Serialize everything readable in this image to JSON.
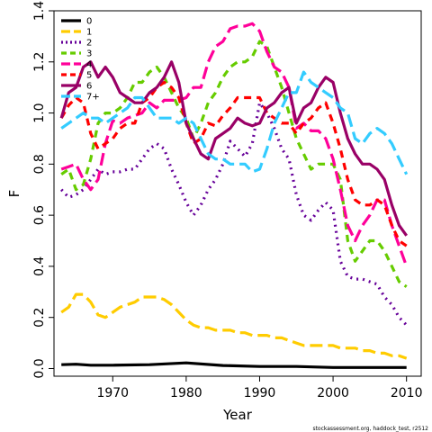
{
  "chart_data": {
    "type": "line",
    "xlabel": "Year",
    "ylabel": "F",
    "xlim": [
      1962,
      2012
    ],
    "ylim": [
      -0.03,
      1.4
    ],
    "xticks": [
      1970,
      1980,
      1990,
      2000,
      2010
    ],
    "yticks": [
      0.0,
      0.2,
      0.4,
      0.6,
      0.8,
      1.0,
      1.2,
      1.4
    ],
    "legend_position": "top-left",
    "grid": false,
    "footnote": "stockassessment.org, haddock_test, r2512",
    "series": [
      {
        "name": "0",
        "color": "#000000",
        "dash": "solid",
        "x": [
          1963,
          1965,
          1967,
          1970,
          1975,
          1980,
          1985,
          1990,
          1995,
          2000,
          2005,
          2010
        ],
        "y": [
          0.015,
          0.017,
          0.013,
          0.013,
          0.015,
          0.022,
          0.012,
          0.008,
          0.008,
          0.004,
          0.004,
          0.004
        ]
      },
      {
        "name": "1",
        "color": "#FFCC00",
        "dash": "long",
        "x": [
          1963,
          1964,
          1965,
          1966,
          1967,
          1968,
          1969,
          1970,
          1971,
          1972,
          1973,
          1974,
          1975,
          1976,
          1977,
          1978,
          1979,
          1980,
          1981,
          1982,
          1983,
          1984,
          1985,
          1986,
          1987,
          1988,
          1989,
          1990,
          1991,
          1992,
          1993,
          1994,
          1995,
          1996,
          1997,
          1998,
          1999,
          2000,
          2001,
          2002,
          2003,
          2004,
          2005,
          2006,
          2007,
          2008,
          2009,
          2010
        ],
        "y": [
          0.22,
          0.24,
          0.29,
          0.29,
          0.26,
          0.21,
          0.2,
          0.22,
          0.24,
          0.25,
          0.26,
          0.28,
          0.28,
          0.28,
          0.27,
          0.25,
          0.22,
          0.19,
          0.17,
          0.16,
          0.16,
          0.15,
          0.15,
          0.15,
          0.14,
          0.14,
          0.13,
          0.13,
          0.13,
          0.12,
          0.12,
          0.11,
          0.1,
          0.09,
          0.09,
          0.09,
          0.09,
          0.09,
          0.08,
          0.08,
          0.08,
          0.07,
          0.07,
          0.06,
          0.06,
          0.05,
          0.05,
          0.04
        ]
      },
      {
        "name": "2",
        "color": "#660099",
        "dash": "dotted",
        "x": [
          1963,
          1964,
          1965,
          1966,
          1967,
          1968,
          1969,
          1970,
          1971,
          1972,
          1973,
          1974,
          1975,
          1976,
          1977,
          1978,
          1979,
          1980,
          1981,
          1982,
          1983,
          1984,
          1985,
          1986,
          1987,
          1988,
          1989,
          1990,
          1991,
          1992,
          1993,
          1994,
          1995,
          1996,
          1997,
          1998,
          1999,
          2000,
          2001,
          2002,
          2003,
          2004,
          2005,
          2006,
          2007,
          2008,
          2009,
          2010
        ],
        "y": [
          0.7,
          0.67,
          0.68,
          0.7,
          0.74,
          0.78,
          0.76,
          0.77,
          0.77,
          0.78,
          0.78,
          0.82,
          0.86,
          0.88,
          0.86,
          0.78,
          0.72,
          0.65,
          0.6,
          0.64,
          0.7,
          0.74,
          0.8,
          0.89,
          0.86,
          0.83,
          0.88,
          1.04,
          1.0,
          0.94,
          0.86,
          0.82,
          0.68,
          0.6,
          0.58,
          0.62,
          0.65,
          0.62,
          0.42,
          0.36,
          0.35,
          0.35,
          0.34,
          0.33,
          0.28,
          0.25,
          0.2,
          0.17
        ]
      },
      {
        "name": "3",
        "color": "#66CC00",
        "dash": "dashed",
        "x": [
          1963,
          1964,
          1965,
          1966,
          1967,
          1968,
          1969,
          1970,
          1971,
          1972,
          1973,
          1974,
          1975,
          1976,
          1977,
          1978,
          1979,
          1980,
          1981,
          1982,
          1983,
          1984,
          1985,
          1986,
          1987,
          1988,
          1989,
          1990,
          1991,
          1992,
          1993,
          1994,
          1995,
          1996,
          1997,
          1998,
          1999,
          2000,
          2001,
          2002,
          2003,
          2004,
          2005,
          2006,
          2007,
          2008,
          2009,
          2010
        ],
        "y": [
          0.76,
          0.78,
          0.7,
          0.72,
          0.82,
          0.96,
          1.0,
          1.0,
          1.02,
          1.06,
          1.12,
          1.12,
          1.16,
          1.18,
          1.14,
          1.08,
          1.02,
          0.98,
          0.9,
          0.96,
          1.04,
          1.08,
          1.14,
          1.18,
          1.2,
          1.2,
          1.22,
          1.28,
          1.26,
          1.18,
          1.1,
          1.0,
          0.9,
          0.84,
          0.78,
          0.8,
          0.8,
          0.8,
          0.74,
          0.5,
          0.42,
          0.46,
          0.5,
          0.5,
          0.46,
          0.4,
          0.34,
          0.32
        ]
      },
      {
        "name": "4",
        "color": "#FF0099",
        "dash": "long",
        "x": [
          1963,
          1964,
          1965,
          1966,
          1967,
          1968,
          1969,
          1970,
          1971,
          1972,
          1973,
          1974,
          1975,
          1976,
          1977,
          1978,
          1979,
          1980,
          1981,
          1982,
          1983,
          1984,
          1985,
          1986,
          1987,
          1988,
          1989,
          1990,
          1991,
          1992,
          1993,
          1994,
          1995,
          1996,
          1997,
          1998,
          1999,
          2000,
          2001,
          2002,
          2003,
          2004,
          2005,
          2006,
          2007,
          2008,
          2009,
          2010
        ],
        "y": [
          0.78,
          0.79,
          0.8,
          0.74,
          0.7,
          0.74,
          0.88,
          0.97,
          0.96,
          0.98,
          0.99,
          1.0,
          1.04,
          1.02,
          1.05,
          1.05,
          1.05,
          1.06,
          1.1,
          1.1,
          1.2,
          1.26,
          1.28,
          1.33,
          1.34,
          1.34,
          1.35,
          1.32,
          1.24,
          1.18,
          1.16,
          1.1,
          0.94,
          0.96,
          0.93,
          0.93,
          0.9,
          0.82,
          0.7,
          0.56,
          0.5,
          0.56,
          0.6,
          0.66,
          0.66,
          0.56,
          0.48,
          0.4
        ]
      },
      {
        "name": "5",
        "color": "#FF0000",
        "dash": "dashed",
        "x": [
          1963,
          1964,
          1965,
          1966,
          1967,
          1968,
          1969,
          1970,
          1971,
          1972,
          1973,
          1974,
          1975,
          1976,
          1977,
          1978,
          1979,
          1980,
          1981,
          1982,
          1983,
          1984,
          1985,
          1986,
          1987,
          1988,
          1989,
          1990,
          1991,
          1992,
          1993,
          1994,
          1995,
          1996,
          1997,
          1998,
          1999,
          2000,
          2001,
          2002,
          2003,
          2004,
          2005,
          2006,
          2007,
          2008,
          2009,
          2010
        ],
        "y": [
          0.98,
          1.03,
          1.06,
          1.04,
          0.92,
          0.86,
          0.88,
          0.9,
          0.94,
          0.96,
          0.96,
          1.04,
          1.06,
          1.1,
          1.12,
          1.1,
          1.06,
          0.96,
          0.88,
          0.9,
          0.96,
          0.95,
          0.99,
          1.02,
          1.06,
          1.06,
          1.06,
          1.06,
          1.0,
          0.98,
          0.96,
          0.96,
          0.92,
          0.96,
          0.98,
          1.02,
          1.04,
          0.96,
          0.86,
          0.74,
          0.66,
          0.64,
          0.64,
          0.66,
          0.64,
          0.56,
          0.5,
          0.48
        ]
      },
      {
        "name": "6",
        "color": "#990066",
        "dash": "solid",
        "x": [
          1963,
          1964,
          1965,
          1966,
          1967,
          1968,
          1969,
          1970,
          1971,
          1972,
          1973,
          1974,
          1975,
          1976,
          1977,
          1978,
          1979,
          1980,
          1981,
          1982,
          1983,
          1984,
          1985,
          1986,
          1987,
          1988,
          1989,
          1990,
          1991,
          1992,
          1993,
          1994,
          1995,
          1996,
          1997,
          1998,
          1999,
          2000,
          2001,
          2002,
          2003,
          2004,
          2005,
          2006,
          2007,
          2008,
          2009,
          2010
        ],
        "y": [
          0.98,
          1.08,
          1.1,
          1.18,
          1.2,
          1.14,
          1.18,
          1.14,
          1.08,
          1.06,
          1.04,
          1.04,
          1.08,
          1.1,
          1.14,
          1.2,
          1.12,
          0.96,
          0.9,
          0.84,
          0.82,
          0.9,
          0.92,
          0.94,
          0.98,
          0.96,
          0.95,
          0.96,
          1.02,
          1.04,
          1.08,
          1.1,
          0.96,
          1.02,
          1.04,
          1.1,
          1.14,
          1.12,
          1.0,
          0.9,
          0.84,
          0.8,
          0.8,
          0.78,
          0.74,
          0.64,
          0.56,
          0.52
        ]
      },
      {
        "name": "7+",
        "color": "#33CCFF",
        "dash": "long",
        "x": [
          1963,
          1964,
          1965,
          1966,
          1967,
          1968,
          1969,
          1970,
          1971,
          1972,
          1973,
          1974,
          1975,
          1976,
          1977,
          1978,
          1979,
          1980,
          1981,
          1982,
          1983,
          1984,
          1985,
          1986,
          1987,
          1988,
          1989,
          1990,
          1991,
          1992,
          1993,
          1994,
          1995,
          1996,
          1997,
          1998,
          1999,
          2000,
          2001,
          2002,
          2003,
          2004,
          2005,
          2006,
          2007,
          2008,
          2009,
          2010
        ],
        "y": [
          0.94,
          0.96,
          0.98,
          1.0,
          0.98,
          0.98,
          0.96,
          0.98,
          1.0,
          1.02,
          1.06,
          1.06,
          1.02,
          0.98,
          0.98,
          0.98,
          0.96,
          0.98,
          0.96,
          0.9,
          0.84,
          0.82,
          0.82,
          0.8,
          0.8,
          0.8,
          0.77,
          0.78,
          0.86,
          0.96,
          1.02,
          1.08,
          1.08,
          1.16,
          1.12,
          1.1,
          1.08,
          1.06,
          1.02,
          1.0,
          0.9,
          0.88,
          0.92,
          0.94,
          0.92,
          0.88,
          0.82,
          0.76
        ]
      }
    ]
  }
}
